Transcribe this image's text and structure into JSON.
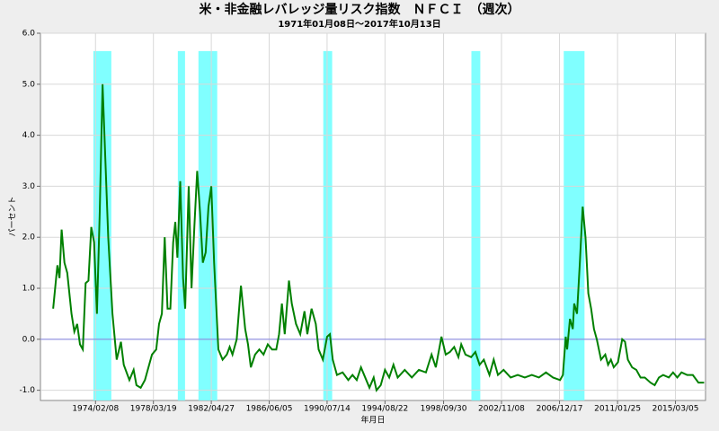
{
  "chart_data": {
    "type": "line",
    "title": "米・非金融レバレッジ量リスク指数　ＮＦＣＩ　（週次）",
    "subtitle": "1971年01月08日～2017年10月13日",
    "x_label": "年月日",
    "y_label": "パーセント",
    "xlim": [
      1970.2,
      2017.3
    ],
    "ylim": [
      -1.2,
      6.0
    ],
    "xticks": [
      {
        "value": 1974.1,
        "label": "1974/02/08"
      },
      {
        "value": 1978.2,
        "label": "1978/03/19"
      },
      {
        "value": 1982.3,
        "label": "1982/04/27"
      },
      {
        "value": 1986.4,
        "label": "1986/06/05"
      },
      {
        "value": 1990.5,
        "label": "1990/07/14"
      },
      {
        "value": 1994.6,
        "label": "1994/08/22"
      },
      {
        "value": 1998.75,
        "label": "1998/09/30"
      },
      {
        "value": 2002.85,
        "label": "2002/11/08"
      },
      {
        "value": 2006.96,
        "label": "2006/12/17"
      },
      {
        "value": 2011.07,
        "label": "2011/01/25"
      },
      {
        "value": 2015.17,
        "label": "2015/03/05"
      }
    ],
    "yticks": [
      {
        "value": -1,
        "label": "-1.0"
      },
      {
        "value": 0,
        "label": "0.0"
      },
      {
        "value": 1,
        "label": "1.0"
      },
      {
        "value": 2,
        "label": "2.0"
      },
      {
        "value": 3,
        "label": "3.0"
      },
      {
        "value": 4,
        "label": "4.0"
      },
      {
        "value": 5,
        "label": "5.0"
      },
      {
        "value": 6,
        "label": "6.0"
      }
    ],
    "grid": true,
    "reference_line": 0,
    "reference_color": "#8080e0",
    "shaded_color": "#80ffff",
    "shaded_ranges": [
      [
        1973.95,
        1975.22
      ],
      [
        1979.93,
        1980.44
      ],
      [
        1981.39,
        1982.72
      ],
      [
        1990.23,
        1990.86
      ],
      [
        2000.72,
        2001.35
      ],
      [
        2007.26,
        2008.73
      ]
    ],
    "series": [
      {
        "color": "#008000",
        "x": [
          1971.1,
          1971.4,
          1971.55,
          1971.7,
          1971.9,
          1972.1,
          1972.4,
          1972.6,
          1972.8,
          1973.0,
          1973.2,
          1973.4,
          1973.6,
          1973.8,
          1974.0,
          1974.2,
          1974.4,
          1974.6,
          1974.8,
          1975.0,
          1975.3,
          1975.6,
          1975.9,
          1976.1,
          1976.5,
          1976.8,
          1977.0,
          1977.3,
          1977.6,
          1977.8,
          1978.1,
          1978.4,
          1978.6,
          1978.8,
          1979.0,
          1979.2,
          1979.4,
          1979.6,
          1979.75,
          1979.9,
          1980.1,
          1980.3,
          1980.45,
          1980.7,
          1980.9,
          1981.1,
          1981.3,
          1981.5,
          1981.7,
          1981.9,
          1982.1,
          1982.3,
          1982.5,
          1982.8,
          1983.1,
          1983.4,
          1983.6,
          1983.8,
          1984.1,
          1984.4,
          1984.7,
          1984.9,
          1985.1,
          1985.4,
          1985.7,
          1986.0,
          1986.3,
          1986.6,
          1986.9,
          1987.1,
          1987.3,
          1987.5,
          1987.8,
          1988.0,
          1988.3,
          1988.6,
          1988.9,
          1989.1,
          1989.4,
          1989.7,
          1989.9,
          1990.2,
          1990.5,
          1990.7,
          1990.9,
          1991.2,
          1991.6,
          1992.0,
          1992.3,
          1992.6,
          1992.9,
          1993.2,
          1993.5,
          1993.8,
          1994.0,
          1994.3,
          1994.6,
          1994.9,
          1995.2,
          1995.5,
          1996.0,
          1996.5,
          1997.0,
          1997.5,
          1997.9,
          1998.2,
          1998.6,
          1998.9,
          1999.2,
          1999.5,
          1999.8,
          2000.0,
          2000.3,
          2000.7,
          2001.0,
          2001.3,
          2001.6,
          2002.0,
          2002.3,
          2002.6,
          2003.0,
          2003.5,
          2004.0,
          2004.5,
          2005.0,
          2005.5,
          2006.0,
          2006.5,
          2007.0,
          2007.2,
          2007.4,
          2007.5,
          2007.7,
          2007.9,
          2008.0,
          2008.2,
          2008.4,
          2008.6,
          2008.8,
          2009.0,
          2009.2,
          2009.4,
          2009.6,
          2009.9,
          2010.2,
          2010.4,
          2010.6,
          2010.8,
          2011.1,
          2011.4,
          2011.6,
          2011.8,
          2012.1,
          2012.4,
          2012.7,
          2013.0,
          2013.4,
          2013.7,
          2014.0,
          2014.3,
          2014.7,
          2015.0,
          2015.3,
          2015.6,
          2016.0,
          2016.4,
          2016.8,
          2017.2
        ],
        "values": [
          0.6,
          1.45,
          1.2,
          2.15,
          1.5,
          1.3,
          0.5,
          0.15,
          0.3,
          -0.1,
          -0.2,
          1.1,
          1.15,
          2.2,
          1.9,
          0.5,
          2.5,
          5.0,
          3.5,
          2.0,
          0.5,
          -0.4,
          -0.05,
          -0.5,
          -0.8,
          -0.6,
          -0.9,
          -0.95,
          -0.8,
          -0.6,
          -0.3,
          -0.2,
          0.3,
          0.5,
          2.0,
          0.6,
          0.6,
          1.9,
          2.3,
          1.6,
          3.1,
          1.2,
          0.6,
          3.0,
          1.0,
          2.2,
          3.3,
          2.5,
          1.5,
          1.7,
          2.6,
          3.0,
          1.5,
          -0.2,
          -0.4,
          -0.3,
          -0.15,
          -0.3,
          0.0,
          1.05,
          0.2,
          -0.1,
          -0.55,
          -0.3,
          -0.2,
          -0.3,
          -0.1,
          -0.2,
          -0.2,
          0.1,
          0.7,
          0.1,
          1.15,
          0.7,
          0.3,
          0.1,
          0.55,
          0.1,
          0.6,
          0.3,
          -0.2,
          -0.4,
          0.05,
          0.1,
          -0.4,
          -0.7,
          -0.65,
          -0.8,
          -0.7,
          -0.8,
          -0.55,
          -0.75,
          -0.95,
          -0.75,
          -1.0,
          -0.9,
          -0.6,
          -0.75,
          -0.5,
          -0.75,
          -0.6,
          -0.75,
          -0.6,
          -0.65,
          -0.3,
          -0.55,
          0.05,
          -0.3,
          -0.25,
          -0.15,
          -0.35,
          -0.1,
          -0.3,
          -0.35,
          -0.25,
          -0.5,
          -0.4,
          -0.7,
          -0.4,
          -0.7,
          -0.6,
          -0.75,
          -0.7,
          -0.75,
          -0.7,
          -0.75,
          -0.65,
          -0.75,
          -0.8,
          -0.7,
          0.05,
          -0.2,
          0.4,
          0.2,
          0.7,
          0.5,
          1.5,
          2.6,
          2.0,
          0.9,
          0.6,
          0.2,
          0.0,
          -0.4,
          -0.3,
          -0.5,
          -0.4,
          -0.55,
          -0.45,
          0.0,
          -0.05,
          -0.4,
          -0.55,
          -0.6,
          -0.75,
          -0.75,
          -0.85,
          -0.9,
          -0.75,
          -0.7,
          -0.75,
          -0.65,
          -0.75,
          -0.65,
          -0.7,
          -0.7,
          -0.85,
          -0.85
        ]
      }
    ]
  }
}
